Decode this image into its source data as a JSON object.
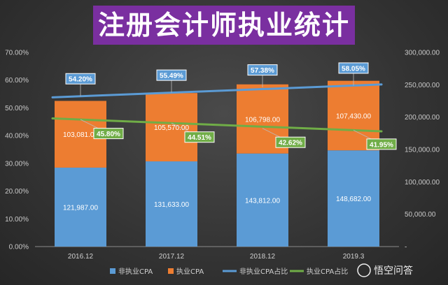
{
  "title": "注册会计师执业统计",
  "watermark": "悟空问答",
  "chart_data": {
    "type": "bar",
    "categories": [
      "2016.12",
      "2017.12",
      "2018.12",
      "2019.3"
    ],
    "series": [
      {
        "name": "非执业CPA",
        "kind": "bar",
        "axis": "right",
        "color": "#5b9bd5",
        "values": [
          121987,
          131633,
          143812,
          148682
        ],
        "labels": [
          "121,987.00",
          "131,633.00",
          "143,812.00",
          "148,682.00"
        ]
      },
      {
        "name": "执业CPA",
        "kind": "bar",
        "axis": "right",
        "color": "#ed7d31",
        "values": [
          103081,
          105570,
          106798,
          107430
        ],
        "labels": [
          "103,081.00",
          "105,570.00",
          "106,798.00",
          "107,430.00"
        ]
      },
      {
        "name": "非执业CPA占比",
        "kind": "line",
        "axis": "left",
        "color": "#5b9bd5",
        "values": [
          54.2,
          55.49,
          57.38,
          58.05
        ],
        "labels": [
          "54.20%",
          "55.49%",
          "57.38%",
          "58.05%"
        ]
      },
      {
        "name": "执业CPA占比",
        "kind": "line",
        "axis": "left",
        "color": "#70ad47",
        "values": [
          45.8,
          44.51,
          42.62,
          41.95
        ],
        "labels": [
          "45.80%",
          "44.51%",
          "42.62%",
          "41.95%"
        ]
      }
    ],
    "y_left": {
      "ylim": [
        0,
        70
      ],
      "ticks": [
        "0.00%",
        "10.00%",
        "20.00%",
        "30.00%",
        "40.00%",
        "50.00%",
        "60.00%",
        "70.00%"
      ]
    },
    "y_right": {
      "ylim": [
        0,
        300000
      ],
      "ticks": [
        "-",
        "50,000.00",
        "100,000.00",
        "150,000.00",
        "200,000.00",
        "250,000.00",
        "300,000.00"
      ]
    },
    "grid": false,
    "legend": "bottom"
  }
}
